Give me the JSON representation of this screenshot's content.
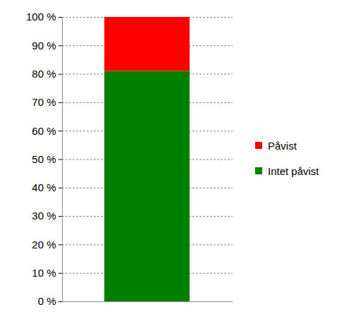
{
  "chart_data": {
    "type": "bar",
    "stacked": true,
    "categories": [
      null
    ],
    "series": [
      {
        "name": "Intet påvist",
        "color": "#008000",
        "values": [
          81
        ]
      },
      {
        "name": "Påvist",
        "color": "#ff0000",
        "values": [
          19
        ]
      }
    ],
    "ylim": [
      0,
      100
    ],
    "yticks": [
      {
        "value": 0,
        "label": "0 %"
      },
      {
        "value": 10,
        "label": "10 %"
      },
      {
        "value": 20,
        "label": "20 %"
      },
      {
        "value": 30,
        "label": "30 %"
      },
      {
        "value": 40,
        "label": "40 %"
      },
      {
        "value": 50,
        "label": "50 %"
      },
      {
        "value": 60,
        "label": "60 %"
      },
      {
        "value": 70,
        "label": "70 %"
      },
      {
        "value": 80,
        "label": "80 %"
      },
      {
        "value": 90,
        "label": "90 %"
      },
      {
        "value": 100,
        "label": "100 %"
      }
    ],
    "grid": true,
    "legend": "right"
  }
}
